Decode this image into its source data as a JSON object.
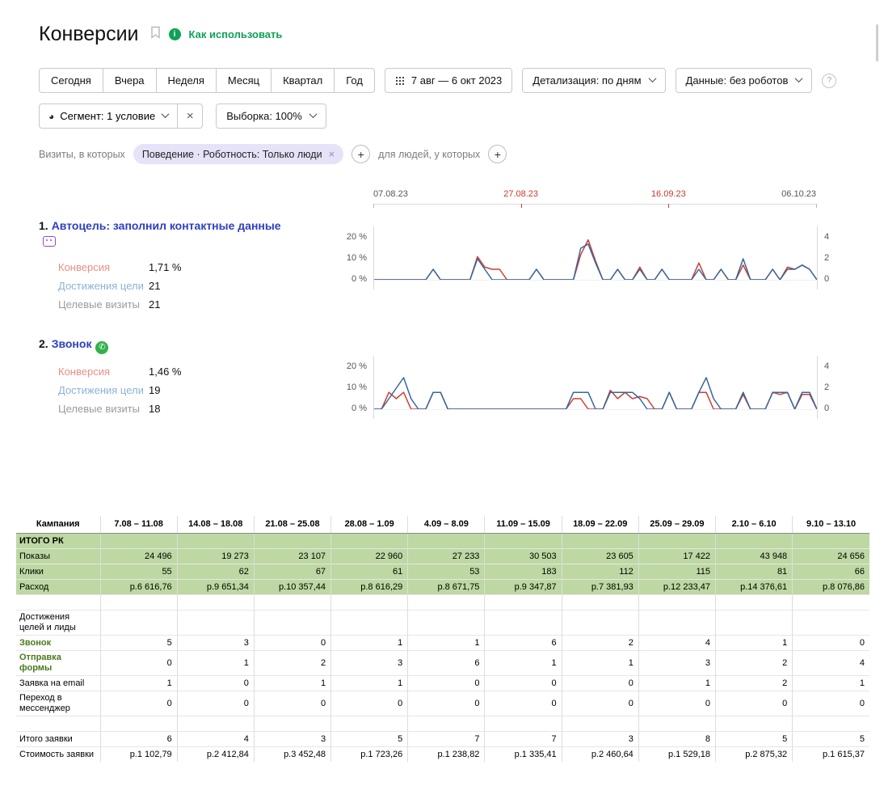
{
  "header": {
    "title": "Конверсии",
    "how_to_use": "Как использовать"
  },
  "icons": {
    "info": "i",
    "help": "?",
    "close": "×",
    "add": "+",
    "segment_pie": "◕",
    "call": "✆"
  },
  "toolbar": {
    "periods": [
      "Сегодня",
      "Вчера",
      "Неделя",
      "Месяц",
      "Квартал",
      "Год"
    ],
    "date_range": "7 авг — 6 окт 2023",
    "detailing": "Детализация: по дням",
    "data_mode": "Данные: без роботов"
  },
  "segment_row": {
    "segment": "Сегмент: 1 условие",
    "sampling": "Выборка: 100%"
  },
  "filters": {
    "visits_label": "Визиты, в которых",
    "condition": "Поведение · Роботность: Только люди",
    "people_label": "для людей, у которых"
  },
  "goals": [
    {
      "number": "1.",
      "title": "Автоцель: заполнил контактные данные",
      "metrics": [
        {
          "label": "Конверсия",
          "value": "1,71 %"
        },
        {
          "label": "Достижения цели",
          "value": "21"
        },
        {
          "label": "Целевые визиты",
          "value": "21"
        }
      ]
    },
    {
      "number": "2.",
      "title": "Звонок",
      "metrics": [
        {
          "label": "Конверсия",
          "value": "1,46 %"
        },
        {
          "label": "Достижения цели",
          "value": "19"
        },
        {
          "label": "Целевые визиты",
          "value": "18"
        }
      ]
    }
  ],
  "chart_data": [
    {
      "type": "line",
      "title": "Автоцель: заполнил контактные данные",
      "x_dates": [
        "07.08.23",
        "27.08.23",
        "16.09.23",
        "06.10.23"
      ],
      "red_dates": [
        "27.08.23",
        "16.09.23"
      ],
      "left_axis": {
        "labels": [
          "20 %",
          "10 %",
          "0 %"
        ],
        "max_pct": 20
      },
      "right_axis": {
        "labels": [
          "4",
          "2",
          "0"
        ],
        "max_count": 4
      },
      "series": [
        {
          "name": "Конверсия",
          "color": "#cf3d33",
          "values": [
            0,
            0,
            0,
            0,
            0,
            0,
            0,
            0,
            5,
            0,
            0,
            0,
            0,
            0,
            11,
            6,
            5,
            5,
            0,
            0,
            0,
            0,
            5,
            0,
            0,
            0,
            0,
            0,
            12,
            19,
            9,
            0,
            0,
            5,
            0,
            0,
            6,
            0,
            0,
            5,
            0,
            0,
            0,
            0,
            8,
            0,
            0,
            5,
            0,
            0,
            7,
            0,
            0,
            0,
            5,
            0,
            6,
            5,
            7,
            5,
            0
          ]
        },
        {
          "name": "Достижения цели",
          "color": "#33689e",
          "values": [
            0,
            0,
            0,
            0,
            0,
            0,
            0,
            0,
            5,
            0,
            0,
            0,
            0,
            0,
            10,
            5,
            0,
            0,
            0,
            0,
            0,
            0,
            5,
            0,
            0,
            0,
            0,
            0,
            15,
            17,
            8,
            0,
            0,
            5,
            0,
            0,
            5,
            0,
            0,
            5,
            0,
            0,
            0,
            0,
            5,
            0,
            0,
            5,
            0,
            0,
            10,
            0,
            0,
            0,
            5,
            0,
            5,
            5,
            7,
            5,
            0
          ]
        }
      ]
    },
    {
      "type": "line",
      "title": "Звонок",
      "x_dates": [
        "07.08.23",
        "27.08.23",
        "16.09.23",
        "06.10.23"
      ],
      "red_dates": [
        "27.08.23",
        "16.09.23"
      ],
      "left_axis": {
        "labels": [
          "20 %",
          "10 %",
          "0 %"
        ],
        "max_pct": 20
      },
      "right_axis": {
        "labels": [
          "4",
          "2",
          "0"
        ],
        "max_count": 4
      },
      "series": [
        {
          "name": "Конверсия",
          "color": "#cf3d33",
          "values": [
            0,
            0,
            8,
            5,
            8,
            0,
            0,
            0,
            8,
            8,
            0,
            0,
            0,
            0,
            0,
            0,
            0,
            0,
            0,
            0,
            0,
            0,
            0,
            0,
            0,
            0,
            0,
            5,
            5,
            0,
            0,
            0,
            9,
            5,
            8,
            5,
            6,
            5,
            0,
            0,
            8,
            0,
            0,
            0,
            8,
            8,
            0,
            0,
            0,
            0,
            7,
            0,
            0,
            0,
            8,
            7,
            8,
            0,
            7,
            7,
            0
          ]
        },
        {
          "name": "Достижения цели",
          "color": "#33689e",
          "values": [
            0,
            0,
            5,
            10,
            15,
            5,
            0,
            0,
            8,
            8,
            0,
            0,
            0,
            0,
            0,
            0,
            0,
            0,
            0,
            0,
            0,
            0,
            0,
            0,
            0,
            0,
            0,
            8,
            8,
            8,
            0,
            0,
            8,
            8,
            8,
            8,
            5,
            0,
            0,
            0,
            8,
            0,
            0,
            0,
            8,
            15,
            5,
            0,
            0,
            0,
            8,
            0,
            0,
            0,
            8,
            8,
            8,
            0,
            8,
            8,
            0
          ]
        }
      ]
    }
  ],
  "table": {
    "columns": [
      "Кампания",
      "7.08 – 11.08",
      "14.08 – 18.08",
      "21.08 – 25.08",
      "28.08 – 1.09",
      "4.09 – 8.09",
      "11.09 – 15.09",
      "18.09 – 22.09",
      "25.09 – 29.09",
      "2.10 – 6.10",
      "9.10 – 13.10"
    ],
    "rows": [
      {
        "label": "ИТОГО РК",
        "variant": "total",
        "values": [
          "",
          "",
          "",
          "",
          "",
          "",
          "",
          "",
          "",
          ""
        ]
      },
      {
        "label": "Показы",
        "variant": "green",
        "values": [
          "24 496",
          "19 273",
          "23 107",
          "22 960",
          "27 233",
          "30 503",
          "23 605",
          "17 422",
          "43 948",
          "24 656"
        ]
      },
      {
        "label": "Клики",
        "variant": "green",
        "values": [
          "55",
          "62",
          "67",
          "61",
          "53",
          "183",
          "112",
          "115",
          "81",
          "66"
        ]
      },
      {
        "label": "Расход",
        "variant": "green",
        "values": [
          "р.6 616,76",
          "р.9 651,34",
          "р.10 357,44",
          "р.8 616,29",
          "р.8 671,75",
          "р.9 347,87",
          "р.7 381,93",
          "р.12 233,47",
          "р.14 376,61",
          "р.8 076,86"
        ]
      },
      {
        "label": "",
        "variant": "spacer",
        "values": [
          "",
          "",
          "",
          "",
          "",
          "",
          "",
          "",
          "",
          ""
        ]
      },
      {
        "label": "Достижения целей и лиды",
        "variant": "section",
        "values": [
          "",
          "",
          "",
          "",
          "",
          "",
          "",
          "",
          "",
          ""
        ]
      },
      {
        "label": "Звонок",
        "variant": "goal",
        "values": [
          "5",
          "3",
          "0",
          "1",
          "1",
          "6",
          "2",
          "4",
          "1",
          "0"
        ]
      },
      {
        "label": "Отправка формы",
        "variant": "goal",
        "values": [
          "0",
          "1",
          "2",
          "3",
          "6",
          "1",
          "1",
          "3",
          "2",
          "4"
        ]
      },
      {
        "label": "Заявка на email",
        "variant": "normal",
        "values": [
          "1",
          "0",
          "1",
          "1",
          "0",
          "0",
          "0",
          "1",
          "2",
          "1"
        ]
      },
      {
        "label": "Переход в мессенджер",
        "variant": "normal",
        "values": [
          "0",
          "0",
          "0",
          "0",
          "0",
          "0",
          "0",
          "0",
          "0",
          "0"
        ]
      },
      {
        "label": "",
        "variant": "spacer",
        "values": [
          "",
          "",
          "",
          "",
          "",
          "",
          "",
          "",
          "",
          ""
        ]
      },
      {
        "label": "Итого заявки",
        "variant": "normal",
        "values": [
          "6",
          "4",
          "3",
          "5",
          "7",
          "7",
          "3",
          "8",
          "5",
          "5"
        ]
      },
      {
        "label": "Стоимость заявки",
        "variant": "normal",
        "values": [
          "р.1 102,79",
          "р.2 412,84",
          "р.3 452,48",
          "р.1 723,26",
          "р.1 238,82",
          "р.1 335,41",
          "р.2 460,64",
          "р.1 529,18",
          "р.2 875,32",
          "р.1 615,37"
        ]
      }
    ]
  }
}
